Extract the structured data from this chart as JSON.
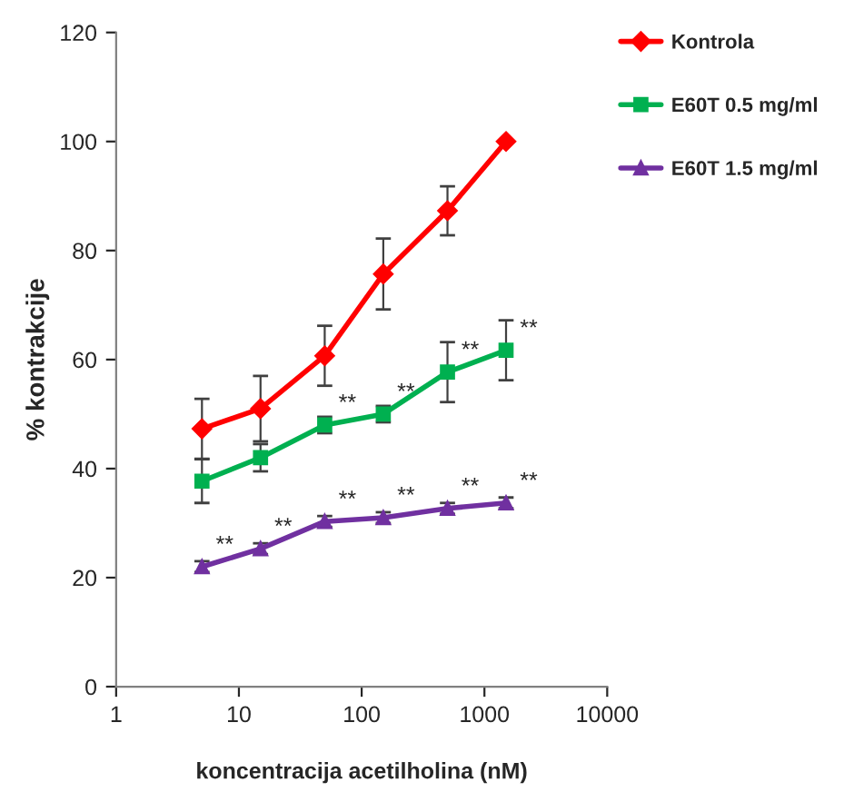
{
  "chart_data": {
    "type": "line",
    "xlabel": "koncentracija acetilholina (nM)",
    "ylabel": "% kontrakcije",
    "x": [
      5,
      15,
      50,
      150,
      500,
      1500
    ],
    "series": [
      {
        "name": "Kontrola",
        "color": "#ff0000",
        "marker": "diamond",
        "values": [
          47.3,
          51,
          60.7,
          75.7,
          87.3,
          100
        ],
        "errors": [
          5.5,
          6,
          5.5,
          6.5,
          4.5,
          null
        ]
      },
      {
        "name": "E60T 0.5 mg/ml",
        "color": "#00b050",
        "marker": "square",
        "values": [
          37.7,
          42,
          48,
          50,
          57.7,
          61.7
        ],
        "errors": [
          4,
          2.5,
          1.5,
          1.5,
          5.5,
          5.5
        ]
      },
      {
        "name": "E60T 1.5 mg/ml",
        "color": "#7030a0",
        "marker": "triangle",
        "values": [
          22,
          25.3,
          30.3,
          31,
          32.7,
          33.7
        ],
        "errors": [
          1,
          1,
          1,
          1,
          1,
          1
        ]
      }
    ],
    "log": "x",
    "xlim": [
      1,
      10000
    ],
    "xticks": [
      1,
      10,
      100,
      1000,
      10000
    ],
    "ylim": [
      0,
      120
    ],
    "yticks": [
      0,
      20,
      40,
      60,
      80,
      100,
      120
    ],
    "grid": false,
    "legend": "right",
    "annotations": [
      {
        "text": "**",
        "x": 50,
        "y": 48
      },
      {
        "text": "**",
        "x": 150,
        "y": 50
      },
      {
        "text": "**",
        "x": 500,
        "y": 57.7
      },
      {
        "text": "**",
        "x": 1500,
        "y": 61.7
      },
      {
        "text": "**",
        "x": 5,
        "y": 22
      },
      {
        "text": "**",
        "x": 15,
        "y": 25.3
      },
      {
        "text": "**",
        "x": 50,
        "y": 30.3
      },
      {
        "text": "**",
        "x": 150,
        "y": 31
      },
      {
        "text": "**",
        "x": 500,
        "y": 32.7
      },
      {
        "text": "**",
        "x": 1500,
        "y": 33.7
      }
    ]
  }
}
